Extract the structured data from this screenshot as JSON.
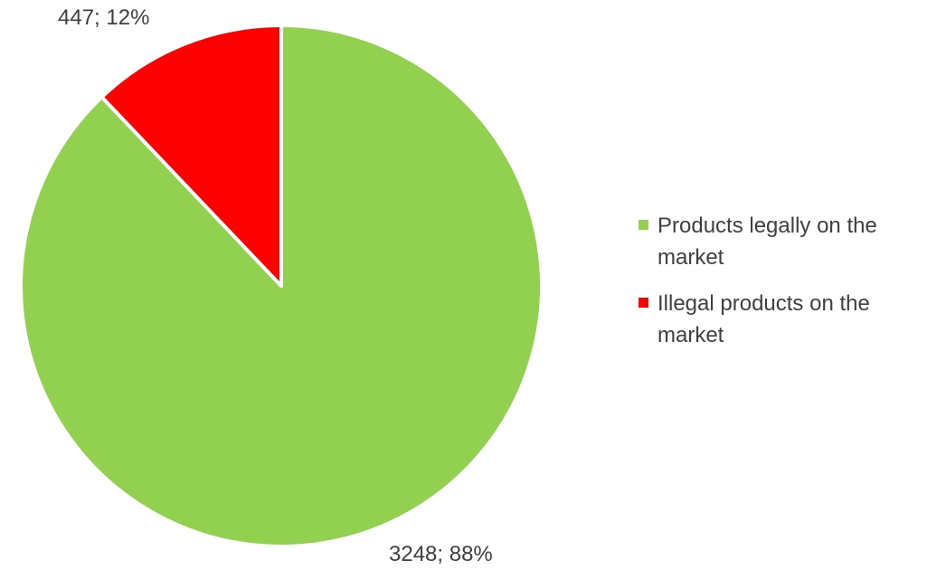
{
  "chart_data": {
    "type": "pie",
    "categories": [
      "Products legally on the market",
      "Illegal products on the market"
    ],
    "values": [
      3248,
      447
    ],
    "percentages": [
      "88%",
      "12%"
    ],
    "data_labels": [
      "3248; 88%",
      "447; 12%"
    ],
    "colors": [
      "#92d050",
      "#ff0000"
    ],
    "start_angle_deg": 0,
    "direction": "clockwise",
    "legend_placement": "right"
  },
  "legend": {
    "items": [
      {
        "label": "Products legally on the market",
        "color": "#92d050"
      },
      {
        "label": "Illegal products on the market",
        "color": "#ff0000"
      }
    ]
  }
}
